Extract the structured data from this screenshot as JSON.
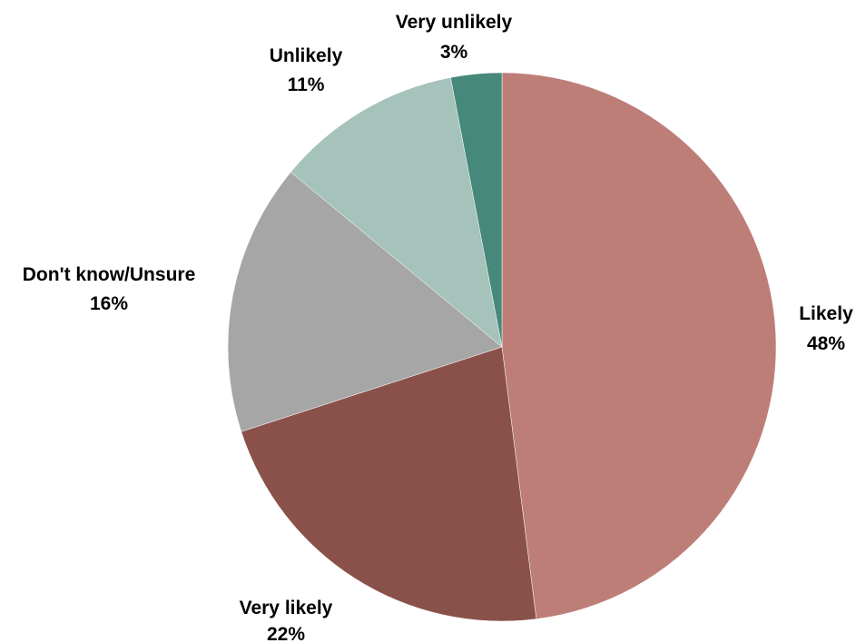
{
  "chart_data": {
    "type": "pie",
    "start_angle_deg": 0,
    "direction": "clockwise",
    "slices": [
      {
        "name": "Likely",
        "value": 48,
        "label": "48%",
        "color": "#BE7E78"
      },
      {
        "name": "Very likely",
        "value": 22,
        "label": "22%",
        "color": "#8A514A"
      },
      {
        "name": "Don't know/Unsure",
        "value": 16,
        "label": "16%",
        "color": "#A6A6A6"
      },
      {
        "name": "Unlikely",
        "value": 11,
        "label": "11%",
        "color": "#A5C2BB"
      },
      {
        "name": "Very unlikely",
        "value": 3,
        "label": "3%",
        "color": "#46887A"
      }
    ]
  }
}
